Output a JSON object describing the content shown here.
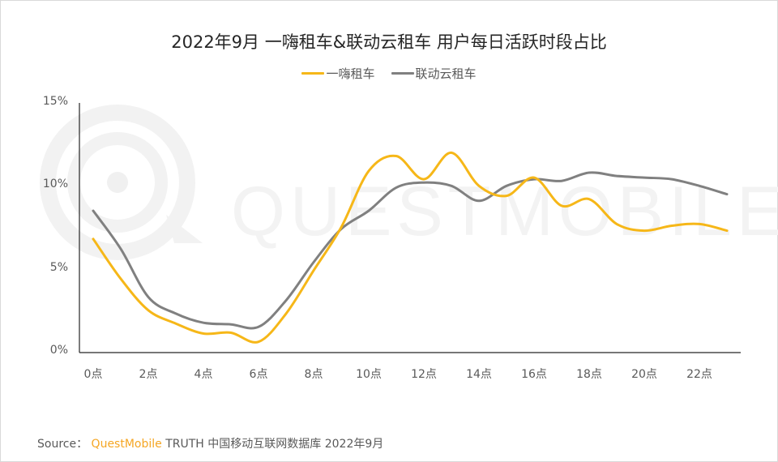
{
  "title": "2022年9月 一嗨租车&联动云租车 用户每日活跃时段占比",
  "legend": [
    {
      "label": "一嗨租车",
      "color": "#f6b718"
    },
    {
      "label": "联动云租车",
      "color": "#808080"
    }
  ],
  "watermark": "QUESTMOBILE",
  "source": {
    "prefix": "Source：",
    "brand": "QuestMobile",
    "rest": "TRUTH 中国移动互联网数据库 2022年9月"
  },
  "chart_data": {
    "type": "line",
    "title": "2022年9月 一嗨租车&联动云租车 用户每日活跃时段占比",
    "xlabel": "",
    "ylabel": "",
    "x": [
      "0点",
      "1点",
      "2点",
      "3点",
      "4点",
      "5点",
      "6点",
      "7点",
      "8点",
      "9点",
      "10点",
      "11点",
      "12点",
      "13点",
      "14点",
      "15点",
      "16点",
      "17点",
      "18点",
      "19点",
      "20点",
      "21点",
      "22点",
      "23点"
    ],
    "x_tick_labels": [
      "0点",
      "2点",
      "4点",
      "6点",
      "8点",
      "10点",
      "12点",
      "14点",
      "16点",
      "18点",
      "20点",
      "22点"
    ],
    "y_tick_labels": [
      "0%",
      "5%",
      "10%",
      "15%"
    ],
    "ylim": [
      0,
      15
    ],
    "unit": "%",
    "grid": false,
    "legend_position": "top",
    "series": [
      {
        "name": "一嗨租车",
        "color": "#f6b718",
        "values": [
          6.8,
          4.4,
          2.5,
          1.7,
          1.1,
          1.15,
          0.6,
          2.3,
          4.9,
          7.5,
          10.9,
          11.8,
          10.4,
          12.0,
          10.0,
          9.4,
          10.5,
          8.8,
          9.2,
          7.7,
          7.3,
          7.6,
          7.7,
          7.3
        ]
      },
      {
        "name": "联动云租车",
        "color": "#808080",
        "values": [
          8.5,
          6.2,
          3.3,
          2.3,
          1.75,
          1.65,
          1.5,
          3.1,
          5.4,
          7.4,
          8.5,
          9.9,
          10.2,
          10.0,
          9.1,
          10.0,
          10.4,
          10.3,
          10.8,
          10.6,
          10.5,
          10.4,
          10.0,
          9.5
        ]
      }
    ]
  }
}
